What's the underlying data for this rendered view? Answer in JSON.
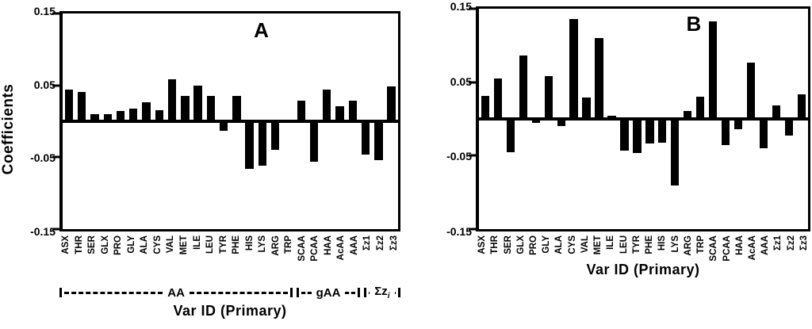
{
  "figure": {
    "ylabel": "Coefficients",
    "panels": [
      {
        "letter": "A",
        "xlabel": "Var ID (Primary)",
        "yticks": [
          "0.15",
          "0.05",
          "-0.05",
          "-0.15"
        ]
      },
      {
        "letter": "B",
        "xlabel": "Var ID (Primary)",
        "yticks": [
          "0.15",
          "0.05",
          "-0.05",
          "-0.15"
        ]
      }
    ],
    "brackets": {
      "groups": [
        {
          "label": "AA",
          "span": 18
        },
        {
          "label": "gAA",
          "span": 5
        },
        {
          "label": "Σz",
          "sub": "i",
          "span": 3
        }
      ]
    }
  },
  "chart_data": [
    {
      "type": "bar",
      "panel": "A",
      "title": "A",
      "xlabel": "Var ID (Primary)",
      "ylabel": "Coefficients",
      "ylim": [
        -0.15,
        0.15
      ],
      "yticks": [
        0.15,
        0.05,
        -0.05,
        -0.15
      ],
      "bar_color": "#000000",
      "grid": false,
      "legend": "none",
      "categories": [
        "ASX",
        "THR",
        "SER",
        "GLX",
        "PRO",
        "GLY",
        "ALA",
        "CYS",
        "VAL",
        "MET",
        "ILE",
        "LEU",
        "TYR",
        "PHE",
        "HIS",
        "LYS",
        "ARG",
        "TRP",
        "SCAA",
        "PCAA",
        "HAA",
        "AcAA",
        "AAA",
        "Σz1",
        "Σz2",
        "Σz3"
      ],
      "values": [
        0.044,
        0.041,
        0.01,
        0.01,
        0.014,
        0.018,
        0.026,
        0.016,
        0.058,
        0.035,
        0.05,
        0.035,
        -0.013,
        0.035,
        -0.066,
        -0.062,
        -0.04,
        0.0,
        0.029,
        -0.056,
        0.044,
        0.021,
        0.029,
        -0.046,
        -0.054,
        0.048
      ],
      "variable_groups": [
        {
          "group": "AA",
          "members": [
            "ASX",
            "THR",
            "SER",
            "GLX",
            "PRO",
            "GLY",
            "ALA",
            "CYS",
            "VAL",
            "MET",
            "ILE",
            "LEU",
            "TYR",
            "PHE",
            "HIS",
            "LYS",
            "ARG",
            "TRP"
          ]
        },
        {
          "group": "gAA",
          "members": [
            "SCAA",
            "PCAA",
            "HAA",
            "AcAA",
            "AAA"
          ]
        },
        {
          "group": "Σzi",
          "members": [
            "Σz1",
            "Σz2",
            "Σz3"
          ]
        }
      ]
    },
    {
      "type": "bar",
      "panel": "B",
      "title": "B",
      "xlabel": "Var ID (Primary)",
      "ylabel": "Coefficients",
      "ylim": [
        -0.15,
        0.15
      ],
      "yticks": [
        0.15,
        0.05,
        -0.05,
        -0.15
      ],
      "bar_color": "#000000",
      "grid": false,
      "legend": "none",
      "categories": [
        "ASX",
        "THR",
        "SER",
        "GLX",
        "PRO",
        "GLY",
        "ALA",
        "CYS",
        "VAL",
        "MET",
        "ILE",
        "LEU",
        "TYR",
        "PHE",
        "HIS",
        "LYS",
        "ARG",
        "TRP",
        "SCAA",
        "PCAA",
        "HAA",
        "AcAA",
        "AAA",
        "Σz1",
        "Σz2",
        "Σz3"
      ],
      "values": [
        0.031,
        0.055,
        -0.045,
        0.086,
        -0.005,
        0.058,
        -0.01,
        0.136,
        0.029,
        0.11,
        0.004,
        -0.043,
        -0.046,
        -0.033,
        -0.032,
        -0.091,
        0.011,
        0.03,
        0.133,
        -0.036,
        -0.014,
        0.077,
        -0.04,
        0.018,
        -0.023,
        0.033
      ]
    }
  ]
}
